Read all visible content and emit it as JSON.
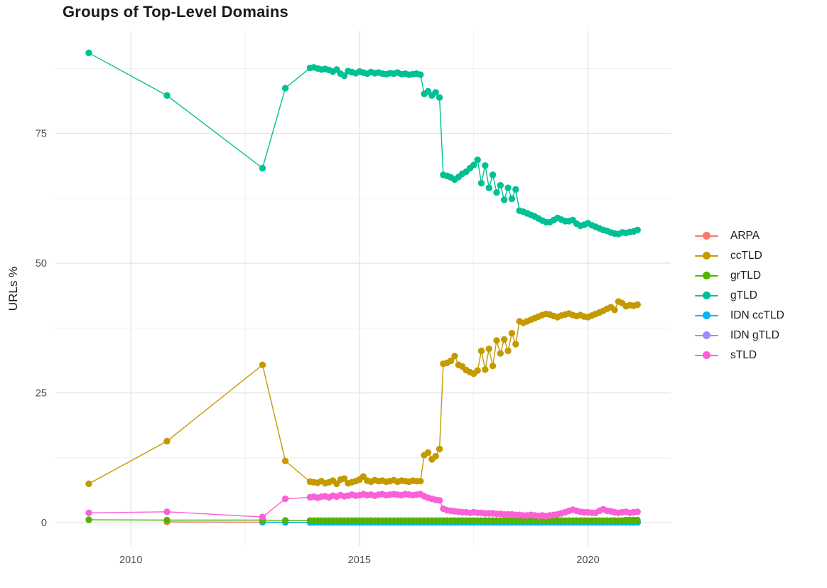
{
  "chart_data": {
    "type": "line",
    "title": "Groups of Top-Level Domains",
    "xlabel": "",
    "ylabel": "URLs %",
    "x_ticks": [
      2010,
      2015,
      2020
    ],
    "x_minor_ticks": [
      2012.5,
      2017.5
    ],
    "y_ticks": [
      0,
      25,
      50,
      75
    ],
    "y_minor_ticks": [
      12.5,
      37.5,
      62.5,
      87.5
    ],
    "x_range": [
      2008.35,
      2021.81
    ],
    "y_range": [
      -4.5,
      94.8
    ],
    "grid": true,
    "legend_position": "right",
    "style": {
      "grid_major": "#e3e3e3",
      "grid_minor": "#efefef",
      "axis_text": "#4d4d4d",
      "title_text": "#1a1a1a",
      "background": "#ffffff"
    },
    "draw_order": [
      "ARPA",
      "IDN gTLD",
      "IDN ccTLD",
      "grTLD",
      "ccTLD",
      "gTLD",
      "sTLD"
    ],
    "series": [
      {
        "name": "ARPA",
        "color": "#F8766D",
        "points": [
          [
            2010.79,
            0.15
          ],
          [
            2012.88,
            0.1
          ],
          {
            "from": 2013.92,
            "step": 0.0833,
            "count": 87,
            "y": 0.05
          }
        ]
      },
      {
        "name": "ccTLD",
        "color": "#C49A00",
        "points": [
          [
            2009.08,
            7.5
          ],
          [
            2010.79,
            15.7
          ],
          [
            2012.88,
            30.4
          ],
          [
            2013.38,
            11.9
          ],
          {
            "from": 2013.92,
            "step": 0.0833,
            "ys": [
              7.9,
              7.8,
              7.7,
              8.0,
              7.6,
              7.8,
              8.1,
              7.5,
              8.3,
              8.5,
              7.6,
              7.8,
              8.0,
              8.3,
              8.9,
              8.1,
              7.9,
              8.2,
              8.0,
              8.1,
              7.9,
              8.0,
              8.2,
              7.9,
              8.1,
              8.0,
              7.9,
              8.1,
              8.0,
              8.0,
              13.0,
              13.5,
              12.2,
              12.8,
              14.2,
              30.6,
              30.8,
              31.2,
              32.1,
              30.4,
              30.1,
              29.4,
              29.0,
              28.7,
              29.3,
              33.1,
              29.5,
              33.5,
              30.2,
              35.1,
              32.6,
              35.3,
              33.1,
              36.5,
              34.4,
              38.8,
              38.5,
              38.8,
              39.1,
              39.4,
              39.7,
              40.0,
              40.2,
              40.1,
              39.8,
              39.6,
              39.9,
              40.1,
              40.3,
              40.0,
              39.8,
              40.0,
              39.7,
              39.6,
              39.9,
              40.2,
              40.5,
              40.8,
              41.2,
              41.5,
              41.0,
              42.6,
              42.3,
              41.7,
              41.9,
              41.8,
              42.0
            ]
          }
        ]
      },
      {
        "name": "grTLD",
        "color": "#53B400",
        "points": [
          [
            2009.08,
            0.55
          ],
          [
            2010.79,
            0.5
          ],
          [
            2012.88,
            0.5
          ],
          [
            2013.38,
            0.45
          ],
          {
            "from": 2013.92,
            "step": 0.0833,
            "count": 83,
            "y": 0.4
          },
          {
            "from": 2020.83,
            "step": 0.0833,
            "count": 4,
            "y": 0.5
          }
        ]
      },
      {
        "name": "gTLD",
        "color": "#00C094",
        "points": [
          [
            2009.08,
            90.5
          ],
          [
            2010.79,
            82.3
          ],
          [
            2012.88,
            68.3
          ],
          [
            2013.38,
            83.7
          ],
          {
            "from": 2013.92,
            "step": 0.0833,
            "ys": [
              87.6,
              87.7,
              87.5,
              87.3,
              87.4,
              87.2,
              86.9,
              87.3,
              86.5,
              86.1,
              87.0,
              86.8,
              86.6,
              86.9,
              86.7,
              86.5,
              86.8,
              86.6,
              86.7,
              86.5,
              86.4,
              86.6,
              86.5,
              86.7,
              86.4,
              86.5,
              86.3,
              86.4,
              86.5,
              86.3,
              82.6,
              83.1,
              82.3,
              82.9,
              81.9,
              67.0,
              66.8,
              66.5,
              66.1,
              66.6,
              67.2,
              67.6,
              68.3,
              68.9,
              69.9,
              65.4,
              68.8,
              64.5,
              67.0,
              63.6,
              65.0,
              62.2,
              64.5,
              62.4,
              64.2,
              60.1,
              59.9,
              59.6,
              59.3,
              59.0,
              58.6,
              58.2,
              57.9,
              57.9,
              58.3,
              58.7,
              58.4,
              58.1,
              58.1,
              58.3,
              57.6,
              57.2,
              57.4,
              57.7,
              57.3,
              57.0,
              56.7,
              56.4,
              56.2,
              55.9,
              55.7,
              55.6,
              55.9,
              55.8,
              56.0,
              56.1,
              56.4
            ]
          }
        ]
      },
      {
        "name": "IDN ccTLD",
        "color": "#00B6EB",
        "points": [
          [
            2012.88,
            0.1
          ],
          [
            2013.38,
            0.05
          ],
          {
            "from": 2013.92,
            "step": 0.0833,
            "count": 87,
            "y": 0.05
          }
        ]
      },
      {
        "name": "IDN gTLD",
        "color": "#A58AFF",
        "points": [
          {
            "from": 2016.92,
            "step": 0.0833,
            "count": 51,
            "y": 0.05
          }
        ]
      },
      {
        "name": "sTLD",
        "color": "#FB61D7",
        "points": [
          [
            2009.08,
            1.9
          ],
          [
            2010.79,
            2.1
          ],
          [
            2012.88,
            1.1
          ],
          [
            2013.38,
            4.6
          ],
          {
            "from": 2013.92,
            "step": 0.0833,
            "ys": [
              4.9,
              5.0,
              4.8,
              5.0,
              5.1,
              4.9,
              5.2,
              5.0,
              5.3,
              5.1,
              5.2,
              5.4,
              5.2,
              5.3,
              5.5,
              5.3,
              5.4,
              5.2,
              5.4,
              5.5,
              5.3,
              5.4,
              5.5,
              5.4,
              5.3,
              5.5,
              5.4,
              5.3,
              5.4,
              5.5,
              5.1,
              4.8,
              4.6,
              4.4,
              4.3,
              2.7,
              2.4,
              2.3,
              2.2,
              2.1,
              2.0,
              2.0,
              1.9,
              2.0,
              1.9,
              1.9,
              1.8,
              1.8,
              1.8,
              1.7,
              1.7,
              1.6,
              1.6,
              1.6,
              1.5,
              1.5,
              1.4,
              1.4,
              1.5,
              1.4,
              1.3,
              1.4,
              1.3,
              1.4,
              1.5,
              1.6,
              1.8,
              2.0,
              2.3,
              2.5,
              2.3,
              2.1,
              2.0,
              2.0,
              1.9,
              1.9,
              2.3,
              2.6,
              2.3,
              2.2,
              2.0,
              1.9,
              2.0,
              2.1,
              1.9,
              2.0,
              2.1
            ]
          }
        ]
      }
    ]
  }
}
